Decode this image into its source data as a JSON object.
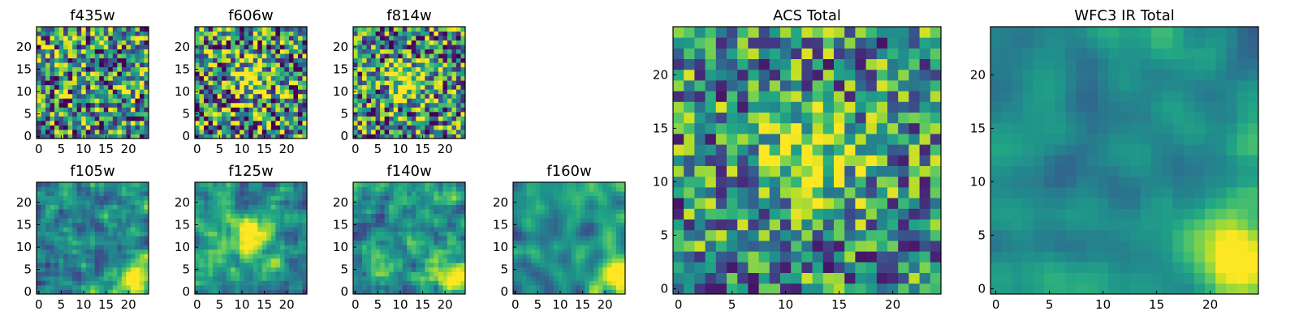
{
  "chart_data": [
    {
      "type": "heatmap",
      "title": "f435w",
      "grid": [
        25,
        25
      ],
      "xticks": [
        0,
        5,
        10,
        15,
        20
      ],
      "yticks": [
        0,
        5,
        10,
        15,
        20
      ],
      "xlim": [
        0,
        24
      ],
      "ylim": [
        0,
        24
      ],
      "colormap": "viridis",
      "hotspot": null,
      "seed": 11,
      "noise": 0.55,
      "smooth": 0
    },
    {
      "type": "heatmap",
      "title": "f606w",
      "grid": [
        25,
        25
      ],
      "xticks": [
        0,
        5,
        10,
        15,
        20
      ],
      "yticks": [
        0,
        5,
        10,
        15,
        20
      ],
      "xlim": [
        0,
        24
      ],
      "ylim": [
        0,
        24
      ],
      "colormap": "viridis",
      "hotspot": {
        "x": 12,
        "y": 13
      },
      "seed": 23,
      "noise": 0.6,
      "smooth": 0
    },
    {
      "type": "heatmap",
      "title": "f814w",
      "grid": [
        25,
        25
      ],
      "xticks": [
        0,
        5,
        10,
        15,
        20
      ],
      "yticks": [
        0,
        5,
        10,
        15,
        20
      ],
      "xlim": [
        0,
        24
      ],
      "ylim": [
        0,
        24
      ],
      "colormap": "viridis",
      "hotspot": {
        "x": 12,
        "y": 12
      },
      "seed": 37,
      "noise": 0.55,
      "smooth": 0
    },
    {
      "type": "heatmap",
      "title": "f105w",
      "grid": [
        25,
        25
      ],
      "xticks": [
        0,
        5,
        10,
        15,
        20
      ],
      "yticks": [
        0,
        5,
        10,
        15,
        20
      ],
      "xlim": [
        0,
        24
      ],
      "ylim": [
        0,
        24
      ],
      "colormap": "viridis",
      "hotspot": {
        "x": 22,
        "y": 3
      },
      "seed": 41,
      "noise": 0.35,
      "smooth": 1
    },
    {
      "type": "heatmap",
      "title": "f125w",
      "grid": [
        25,
        25
      ],
      "xticks": [
        0,
        5,
        10,
        15,
        20
      ],
      "yticks": [
        0,
        5,
        10,
        15,
        20
      ],
      "xlim": [
        0,
        24
      ],
      "ylim": [
        0,
        24
      ],
      "colormap": "viridis",
      "hotspot": {
        "x": 12,
        "y": 12
      },
      "seed": 53,
      "noise": 0.35,
      "smooth": 1
    },
    {
      "type": "heatmap",
      "title": "f140w",
      "grid": [
        25,
        25
      ],
      "xticks": [
        0,
        5,
        10,
        15,
        20
      ],
      "yticks": [
        0,
        5,
        10,
        15,
        20
      ],
      "xlim": [
        0,
        24
      ],
      "ylim": [
        0,
        24
      ],
      "colormap": "viridis",
      "hotspot": {
        "x": 22,
        "y": 3
      },
      "seed": 67,
      "noise": 0.35,
      "smooth": 1
    },
    {
      "type": "heatmap",
      "title": "f160w",
      "grid": [
        25,
        25
      ],
      "xticks": [
        0,
        5,
        10,
        15,
        20
      ],
      "yticks": [
        0,
        5,
        10,
        15,
        20
      ],
      "xlim": [
        0,
        24
      ],
      "ylim": [
        0,
        24
      ],
      "colormap": "viridis",
      "hotspot": {
        "x": 22,
        "y": 3
      },
      "seed": 79,
      "noise": 0.3,
      "smooth": 2
    },
    {
      "type": "heatmap",
      "title": "ACS Total",
      "grid": [
        25,
        25
      ],
      "xticks": [
        0,
        5,
        10,
        15,
        20
      ],
      "yticks": [
        0,
        5,
        10,
        15,
        20
      ],
      "xlim": [
        0,
        24
      ],
      "ylim": [
        0,
        24
      ],
      "colormap": "viridis",
      "hotspot": {
        "x": 12,
        "y": 12
      },
      "seed": 91,
      "noise": 0.45,
      "smooth": 0
    },
    {
      "type": "heatmap",
      "title": "WFC3 IR Total",
      "grid": [
        25,
        25
      ],
      "xticks": [
        0,
        5,
        10,
        15,
        20
      ],
      "yticks": [
        0,
        5,
        10,
        15,
        20
      ],
      "xlim": [
        0,
        24
      ],
      "ylim": [
        0,
        24
      ],
      "colormap": "viridis",
      "hotspot": {
        "x": 22,
        "y": 4
      },
      "seed": 103,
      "noise": 0.2,
      "smooth": 2
    }
  ]
}
